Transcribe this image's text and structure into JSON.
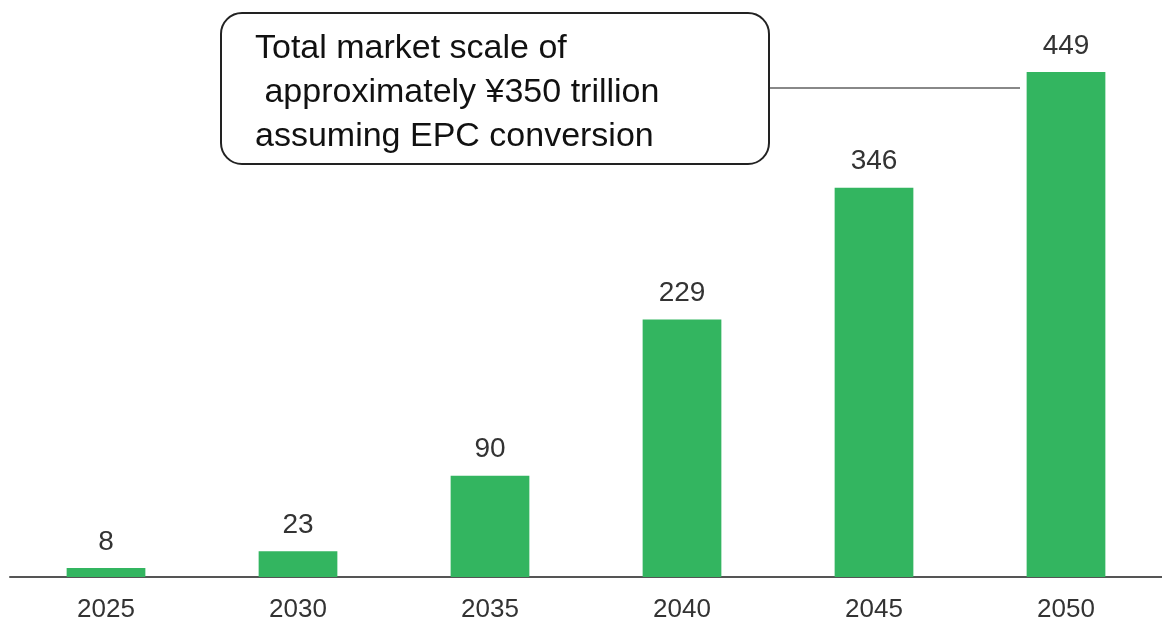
{
  "chart_data": {
    "type": "bar",
    "categories": [
      "2025",
      "2030",
      "2035",
      "2040",
      "2045",
      "2050"
    ],
    "values": [
      8,
      23,
      90,
      229,
      346,
      449
    ],
    "color": "#33b560",
    "data_labels": true,
    "annotations": [
      "Total market scale of\n approximately ¥350 trillion\nassuming EPC conversion"
    ]
  }
}
